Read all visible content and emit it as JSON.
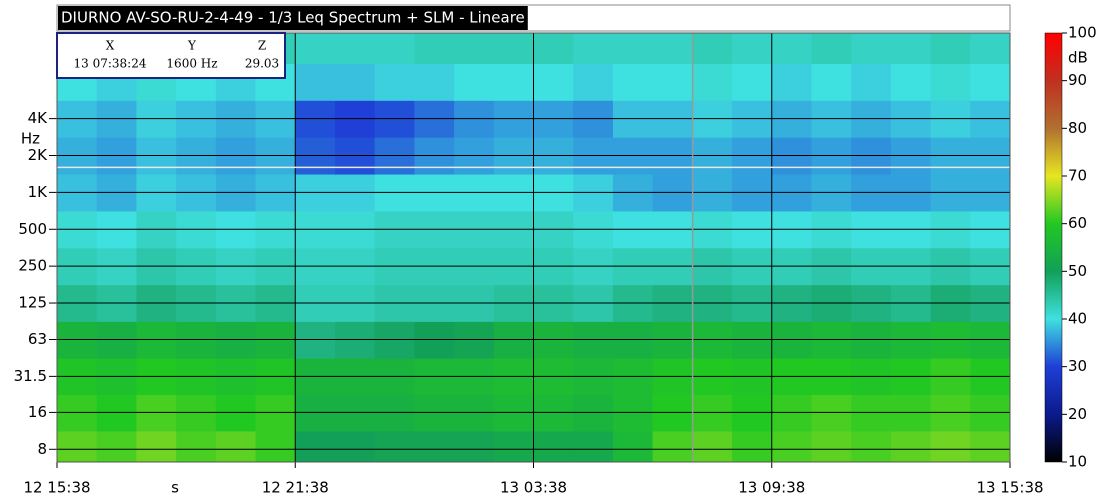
{
  "chart_data": {
    "type": "heatmap",
    "title": "DIURNO AV-SO-RU-2-4-49 - 1/3 Leq Spectrum + SLM - Lineare",
    "x_unit": "s",
    "y_unit": "Hz",
    "colorbar_label": "dB",
    "cursor": {
      "x_label": "X",
      "y_label": "Y",
      "z_label": "Z",
      "x": "13 07:38:24",
      "y": "1600 Hz",
      "z": 29.03
    },
    "xlim": [
      "12 15:38",
      "13 15:38"
    ],
    "xticks": [
      "12 15:38",
      "12 21:38",
      "13 03:38",
      "13 09:38",
      "13 15:38"
    ],
    "yscale": "log",
    "ylim": [
      6.3,
      20000
    ],
    "yticks": [
      8,
      16,
      31.5,
      63,
      125,
      250,
      500,
      {
        "value": 1000,
        "label": "1K"
      },
      {
        "value": 2000,
        "label": "2K"
      },
      {
        "value": 4000,
        "label": "4K"
      }
    ],
    "grid": true,
    "x": [
      "12 15:38",
      "12 16:38",
      "12 17:38",
      "12 18:38",
      "12 19:38",
      "12 20:38",
      "12 21:38",
      "12 22:38",
      "12 23:38",
      "13 00:38",
      "13 01:38",
      "13 02:38",
      "13 03:38",
      "13 04:38",
      "13 05:38",
      "13 06:38",
      "13 07:38",
      "13 08:38",
      "13 09:38",
      "13 10:38",
      "13 11:38",
      "13 12:38",
      "13 13:38",
      "13 14:38"
    ],
    "y": [
      8,
      16,
      31.5,
      63,
      125,
      250,
      500,
      1000,
      2000,
      4000,
      8000,
      16000
    ],
    "z": [
      [
        63,
        62,
        64,
        62,
        63,
        61,
        50,
        50,
        51,
        51,
        51,
        52,
        52,
        52,
        56,
        62,
        63,
        61,
        62,
        63,
        62,
        63,
        64,
        63
      ],
      [
        61,
        60,
        62,
        61,
        60,
        61,
        54,
        54,
        54,
        55,
        55,
        56,
        56,
        55,
        57,
        60,
        61,
        60,
        61,
        62,
        61,
        61,
        62,
        61
      ],
      [
        59,
        58,
        60,
        59,
        58,
        59,
        55,
        55,
        55,
        56,
        56,
        57,
        57,
        56,
        57,
        59,
        60,
        59,
        60,
        60,
        59,
        60,
        61,
        60
      ],
      [
        55,
        54,
        56,
        55,
        54,
        55,
        47,
        48,
        49,
        50,
        51,
        54,
        55,
        54,
        54,
        55,
        56,
        55,
        55,
        56,
        55,
        56,
        57,
        56
      ],
      [
        46,
        45,
        47,
        46,
        45,
        46,
        43,
        43,
        44,
        44,
        44,
        45,
        45,
        44,
        46,
        47,
        47,
        46,
        47,
        48,
        47,
        46,
        48,
        47
      ],
      [
        43,
        42,
        44,
        43,
        42,
        43,
        42,
        42,
        43,
        43,
        43,
        43,
        43,
        42,
        43,
        43,
        44,
        43,
        43,
        44,
        43,
        43,
        44,
        43
      ],
      [
        41,
        40,
        42,
        41,
        40,
        41,
        41,
        41,
        42,
        42,
        42,
        42,
        42,
        41,
        40,
        40,
        41,
        40,
        40,
        41,
        40,
        40,
        41,
        40
      ],
      [
        38,
        37,
        39,
        38,
        37,
        38,
        39,
        39,
        40,
        40,
        40,
        40,
        40,
        39,
        37,
        36,
        37,
        36,
        36,
        37,
        36,
        36,
        37,
        37
      ],
      [
        37,
        36,
        38,
        37,
        36,
        37,
        32,
        31,
        33,
        35,
        36,
        37,
        37,
        36,
        36,
        36,
        37,
        36,
        35,
        36,
        35,
        36,
        37,
        37
      ],
      [
        38,
        37,
        39,
        38,
        37,
        38,
        31,
        30,
        31,
        33,
        35,
        36,
        36,
        35,
        38,
        38,
        39,
        38,
        37,
        38,
        37,
        38,
        39,
        38
      ],
      [
        40,
        39,
        41,
        40,
        39,
        40,
        38,
        38,
        39,
        39,
        40,
        40,
        40,
        39,
        40,
        40,
        41,
        40,
        39,
        40,
        39,
        40,
        41,
        40
      ],
      [
        42,
        42,
        43,
        42,
        42,
        43,
        42,
        42,
        42,
        43,
        43,
        43,
        43,
        42,
        42,
        42,
        43,
        42,
        42,
        43,
        42,
        42,
        43,
        42
      ]
    ],
    "zlim": [
      10,
      100
    ],
    "zticks": [
      10,
      20,
      30,
      40,
      50,
      60,
      70,
      80,
      90,
      100
    ],
    "colorscale": [
      [
        10,
        "#000000"
      ],
      [
        20,
        "#0b1a8c"
      ],
      [
        30,
        "#1f3fd6"
      ],
      [
        40,
        "#3fe0e0"
      ],
      [
        50,
        "#12a058"
      ],
      [
        60,
        "#22c822"
      ],
      [
        70,
        "#e6e622"
      ],
      [
        80,
        "#b07030"
      ],
      [
        90,
        "#c03020"
      ],
      [
        100,
        "#ff0000"
      ]
    ],
    "grid_color": "#000000",
    "cursor_color": "#999999"
  }
}
